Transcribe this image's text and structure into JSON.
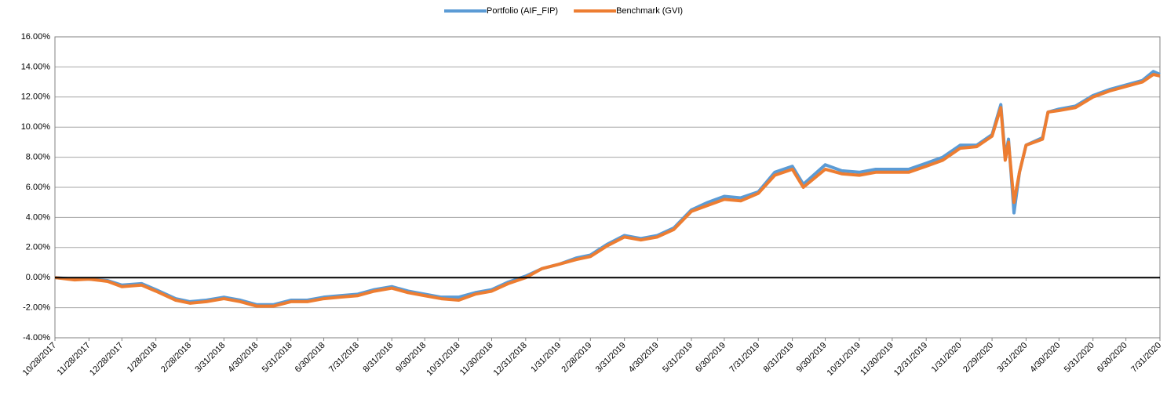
{
  "chart_data": {
    "type": "line",
    "xlim": [
      "2017-10-28",
      "2020-07-31"
    ],
    "xticks": [
      {
        "value": "2017-10-28",
        "label": "10/28/2017"
      },
      {
        "value": "2017-11-28",
        "label": "11/28/2017"
      },
      {
        "value": "2017-12-28",
        "label": "12/28/2017"
      },
      {
        "value": "2018-01-28",
        "label": "1/28/2018"
      },
      {
        "value": "2018-02-28",
        "label": "2/28/2018"
      },
      {
        "value": "2018-03-31",
        "label": "3/31/2018"
      },
      {
        "value": "2018-04-30",
        "label": "4/30/2018"
      },
      {
        "value": "2018-05-31",
        "label": "5/31/2018"
      },
      {
        "value": "2018-06-30",
        "label": "6/30/2018"
      },
      {
        "value": "2018-07-31",
        "label": "7/31/2018"
      },
      {
        "value": "2018-08-31",
        "label": "8/31/2018"
      },
      {
        "value": "2018-09-30",
        "label": "9/30/2018"
      },
      {
        "value": "2018-10-31",
        "label": "10/31/2018"
      },
      {
        "value": "2018-11-30",
        "label": "11/30/2018"
      },
      {
        "value": "2018-12-31",
        "label": "12/31/2018"
      },
      {
        "value": "2019-01-31",
        "label": "1/31/2019"
      },
      {
        "value": "2019-02-28",
        "label": "2/28/2019"
      },
      {
        "value": "2019-03-31",
        "label": "3/31/2019"
      },
      {
        "value": "2019-04-30",
        "label": "4/30/2019"
      },
      {
        "value": "2019-05-31",
        "label": "5/31/2019"
      },
      {
        "value": "2019-06-30",
        "label": "6/30/2019"
      },
      {
        "value": "2019-07-31",
        "label": "7/31/2019"
      },
      {
        "value": "2019-08-31",
        "label": "8/31/2019"
      },
      {
        "value": "2019-09-30",
        "label": "9/30/2019"
      },
      {
        "value": "2019-10-31",
        "label": "10/31/2019"
      },
      {
        "value": "2019-11-30",
        "label": "11/30/2019"
      },
      {
        "value": "2019-12-31",
        "label": "12/31/2019"
      },
      {
        "value": "2020-01-31",
        "label": "1/31/2020"
      },
      {
        "value": "2020-02-29",
        "label": "2/29/2020"
      },
      {
        "value": "2020-03-31",
        "label": "3/31/2020"
      },
      {
        "value": "2020-04-30",
        "label": "4/30/2020"
      },
      {
        "value": "2020-05-31",
        "label": "5/31/2020"
      },
      {
        "value": "2020-06-30",
        "label": "6/30/2020"
      },
      {
        "value": "2020-07-31",
        "label": "7/31/2020"
      }
    ],
    "ylim": [
      -4,
      16
    ],
    "yticks": [
      {
        "value": -4,
        "label": "-4.00%"
      },
      {
        "value": -2,
        "label": "-2.00%"
      },
      {
        "value": 0,
        "label": "0.00%"
      },
      {
        "value": 2,
        "label": "2.00%"
      },
      {
        "value": 4,
        "label": "4.00%"
      },
      {
        "value": 6,
        "label": "6.00%"
      },
      {
        "value": 8,
        "label": "8.00%"
      },
      {
        "value": 10,
        "label": "10.00%"
      },
      {
        "value": 12,
        "label": "12.00%"
      },
      {
        "value": 14,
        "label": "14.00%"
      },
      {
        "value": 16,
        "label": "16.00%"
      }
    ],
    "grid": true,
    "legend": "top",
    "x": [
      "2017-10-28",
      "2017-11-15",
      "2017-11-28",
      "2017-12-15",
      "2017-12-28",
      "2018-01-15",
      "2018-01-28",
      "2018-02-15",
      "2018-02-28",
      "2018-03-15",
      "2018-03-31",
      "2018-04-15",
      "2018-04-30",
      "2018-05-15",
      "2018-05-31",
      "2018-06-15",
      "2018-06-30",
      "2018-07-15",
      "2018-07-31",
      "2018-08-15",
      "2018-08-31",
      "2018-09-15",
      "2018-09-30",
      "2018-10-15",
      "2018-10-31",
      "2018-11-15",
      "2018-11-30",
      "2018-12-15",
      "2018-12-31",
      "2019-01-15",
      "2019-01-31",
      "2019-02-15",
      "2019-02-28",
      "2019-03-15",
      "2019-03-31",
      "2019-04-15",
      "2019-04-30",
      "2019-05-15",
      "2019-05-31",
      "2019-06-15",
      "2019-06-30",
      "2019-07-15",
      "2019-07-31",
      "2019-08-15",
      "2019-08-31",
      "2019-09-10",
      "2019-09-30",
      "2019-10-15",
      "2019-10-31",
      "2019-11-15",
      "2019-11-30",
      "2019-12-15",
      "2019-12-31",
      "2020-01-15",
      "2020-01-31",
      "2020-02-15",
      "2020-02-29",
      "2020-03-08",
      "2020-03-12",
      "2020-03-15",
      "2020-03-20",
      "2020-03-25",
      "2020-03-31",
      "2020-04-15",
      "2020-04-20",
      "2020-04-30",
      "2020-05-15",
      "2020-05-31",
      "2020-06-15",
      "2020-06-30",
      "2020-07-15",
      "2020-07-25",
      "2020-07-31"
    ],
    "series": [
      {
        "name": "Portfolio (AIF_FIP)",
        "color": "#5b9bd5",
        "values": [
          0,
          -0.1,
          -0.1,
          -0.2,
          -0.5,
          -0.4,
          -0.8,
          -1.4,
          -1.6,
          -1.5,
          -1.3,
          -1.5,
          -1.8,
          -1.8,
          -1.5,
          -1.5,
          -1.3,
          -1.2,
          -1.1,
          -0.8,
          -0.6,
          -0.9,
          -1.1,
          -1.3,
          -1.3,
          -1.0,
          -0.8,
          -0.3,
          0.1,
          0.6,
          0.9,
          1.3,
          1.5,
          2.2,
          2.8,
          2.6,
          2.8,
          3.3,
          4.5,
          5.0,
          5.4,
          5.3,
          5.7,
          7.0,
          7.4,
          6.2,
          7.5,
          7.1,
          7.0,
          7.2,
          7.2,
          7.2,
          7.6,
          8.0,
          8.8,
          8.8,
          9.5,
          11.5,
          8.0,
          9.2,
          4.3,
          7.0,
          8.8,
          9.3,
          11.0,
          11.2,
          11.4,
          12.1,
          12.5,
          12.8,
          13.1,
          13.7,
          13.5
        ]
      },
      {
        "name": "Benchmark (GVI)",
        "color": "#ed7d31",
        "values": [
          0,
          -0.15,
          -0.1,
          -0.25,
          -0.6,
          -0.5,
          -0.9,
          -1.5,
          -1.7,
          -1.6,
          -1.4,
          -1.6,
          -1.9,
          -1.9,
          -1.6,
          -1.6,
          -1.4,
          -1.3,
          -1.2,
          -0.9,
          -0.7,
          -1.0,
          -1.2,
          -1.4,
          -1.5,
          -1.1,
          -0.9,
          -0.4,
          0.0,
          0.6,
          0.9,
          1.2,
          1.4,
          2.1,
          2.7,
          2.5,
          2.7,
          3.2,
          4.4,
          4.8,
          5.2,
          5.1,
          5.6,
          6.8,
          7.2,
          6.0,
          7.2,
          6.9,
          6.8,
          7.0,
          7.0,
          7.0,
          7.4,
          7.8,
          8.6,
          8.7,
          9.4,
          11.3,
          7.8,
          9.0,
          5.0,
          7.0,
          8.8,
          9.2,
          11.0,
          11.1,
          11.3,
          12.0,
          12.4,
          12.7,
          13.0,
          13.5,
          13.4
        ]
      }
    ]
  }
}
